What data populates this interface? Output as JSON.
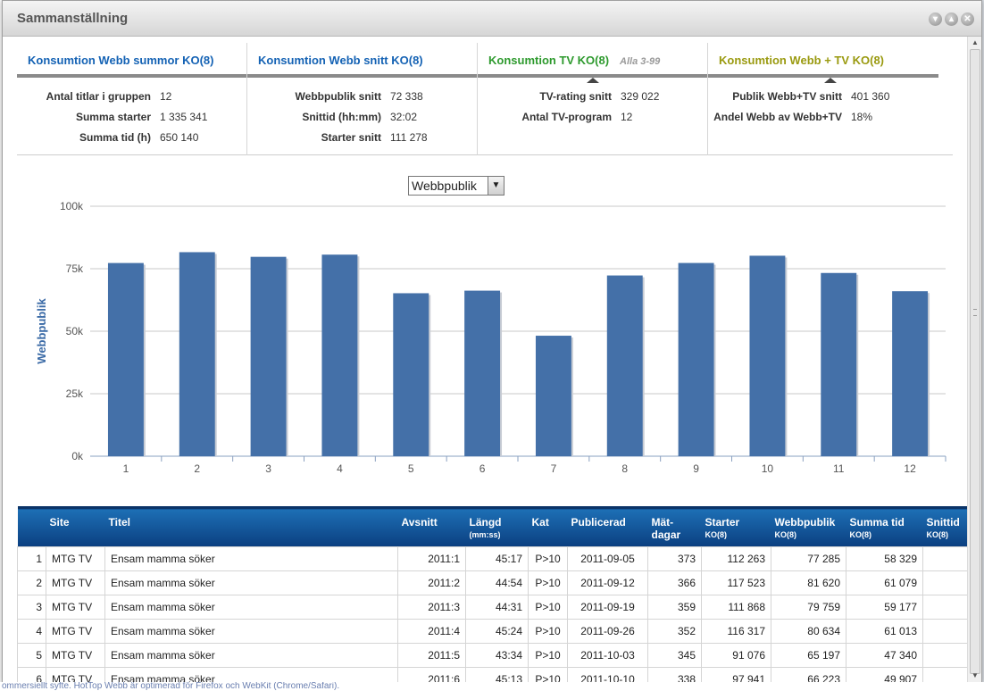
{
  "background": {
    "footer_text": "ommersiellt syfte. HotTop Webb är optimerad för Firefox och WebKit (Chrome/Safari)."
  },
  "dialog": {
    "title": "Sammanställning",
    "buttons": [
      "▾",
      "▴",
      "✕"
    ]
  },
  "summary": [
    {
      "heading": "Konsumtion Webb summor KO(8)",
      "color": "#1462b4",
      "sub": "",
      "rows": [
        {
          "k": "Antal titlar i gruppen",
          "v": "12"
        },
        {
          "k": "Summa starter",
          "v": "1 335 341"
        },
        {
          "k": "Summa tid (h)",
          "v": "650 140"
        }
      ]
    },
    {
      "heading": "Konsumtion Webb snitt KO(8)",
      "color": "#1462b4",
      "sub": "",
      "rows": [
        {
          "k": "Webbpublik snitt",
          "v": "72 338"
        },
        {
          "k": "Snittid (hh:mm)",
          "v": "32:02"
        },
        {
          "k": "Starter snitt",
          "v": "111 278"
        }
      ]
    },
    {
      "heading": "Konsumtion TV KO(8)",
      "color": "#2e9a2e",
      "sub": "Alla 3-99",
      "rows": [
        {
          "k": "TV-rating snitt",
          "v": "329 022"
        },
        {
          "k": "Antal TV-program",
          "v": "12"
        }
      ]
    },
    {
      "heading": "Konsumtion Webb + TV KO(8)",
      "color": "#9a9a10",
      "sub": "",
      "rows": [
        {
          "k": "Publik Webb+TV snitt",
          "v": "401 360"
        },
        {
          "k": "Andel Webb av Webb+TV",
          "v": "18%"
        }
      ]
    }
  ],
  "chart_select": {
    "value": "Webbpublik"
  },
  "chart_data": {
    "type": "bar",
    "ylabel": "Webbpublik",
    "categories": [
      "1",
      "2",
      "3",
      "4",
      "5",
      "6",
      "7",
      "8",
      "9",
      "10",
      "11",
      "12"
    ],
    "values": [
      77285,
      81620,
      79759,
      80634,
      65197,
      66223,
      48200,
      72300,
      77300,
      80200,
      73300,
      66000
    ],
    "ylim": [
      0,
      100000
    ],
    "yticks": [
      "0k",
      "25k",
      "50k",
      "75k",
      "100k"
    ],
    "bar_color": "#4470a8",
    "grid": true
  },
  "table": {
    "headers": [
      {
        "label": "",
        "small": ""
      },
      {
        "label": "Site",
        "small": ""
      },
      {
        "label": "Titel",
        "small": ""
      },
      {
        "label": "Avsnitt",
        "small": ""
      },
      {
        "label": "Längd",
        "small": "(mm:ss)"
      },
      {
        "label": "Kat",
        "small": ""
      },
      {
        "label": "Publicerad",
        "small": ""
      },
      {
        "label": "Mät-dagar",
        "small": ""
      },
      {
        "label": "Starter",
        "small": "KO(8)"
      },
      {
        "label": "Webbpublik",
        "small": "KO(8)"
      },
      {
        "label": "Summa tid",
        "small": "KO(8)"
      },
      {
        "label": "Snittid",
        "small": "KO(8)"
      }
    ],
    "rows": [
      [
        "1",
        "MTG TV",
        "Ensam mamma söker",
        "2011:1",
        "45:17",
        "P>10",
        "2011-09-05",
        "373",
        "112 263",
        "77 285",
        "58 329",
        ""
      ],
      [
        "2",
        "MTG TV",
        "Ensam mamma söker",
        "2011:2",
        "44:54",
        "P>10",
        "2011-09-12",
        "366",
        "117 523",
        "81 620",
        "61 079",
        ""
      ],
      [
        "3",
        "MTG TV",
        "Ensam mamma söker",
        "2011:3",
        "44:31",
        "P>10",
        "2011-09-19",
        "359",
        "111 868",
        "79 759",
        "59 177",
        ""
      ],
      [
        "4",
        "MTG TV",
        "Ensam mamma söker",
        "2011:4",
        "45:24",
        "P>10",
        "2011-09-26",
        "352",
        "116 317",
        "80 634",
        "61 013",
        ""
      ],
      [
        "5",
        "MTG TV",
        "Ensam mamma söker",
        "2011:5",
        "43:34",
        "P>10",
        "2011-10-03",
        "345",
        "91 076",
        "65 197",
        "47 340",
        ""
      ],
      [
        "6",
        "MTG TV",
        "Ensam mamma söker",
        "2011:6",
        "45:13",
        "P>10",
        "2011-10-10",
        "338",
        "97 941",
        "66 223",
        "49 907",
        ""
      ]
    ]
  }
}
